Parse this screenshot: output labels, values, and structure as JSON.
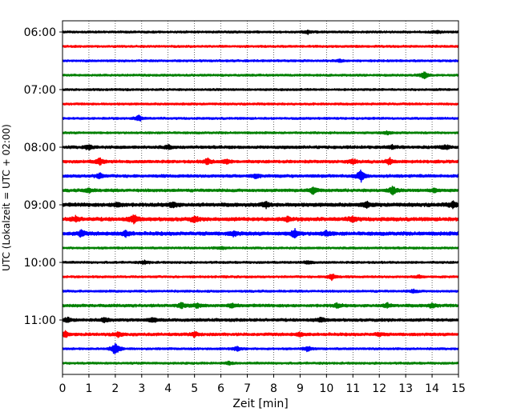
{
  "chart_data": {
    "type": "line",
    "title": "",
    "xlabel": "Zeit  [min]",
    "ylabel": "UTC (Lokalzeit = UTC + 02:00)",
    "xlim": [
      0,
      15
    ],
    "x_ticks": [
      "0",
      "1",
      "2",
      "3",
      "4",
      "5",
      "6",
      "7",
      "8",
      "9",
      "10",
      "11",
      "12",
      "13",
      "14",
      "15"
    ],
    "y_ticks": [
      "06:00",
      "07:00",
      "08:00",
      "09:00",
      "10:00",
      "11:00"
    ],
    "grid": "vertical dotted",
    "trace_colors": [
      "#000000",
      "#ff0000",
      "#0000ff",
      "#008000"
    ],
    "traces": [
      {
        "time": "06:00",
        "color": "#000000",
        "amplitude": 3,
        "events": [
          {
            "x": 9.3,
            "amp": 4
          },
          {
            "x": 14.2,
            "amp": 3
          }
        ]
      },
      {
        "time": "06:15",
        "color": "#ff0000",
        "amplitude": 3,
        "events": []
      },
      {
        "time": "06:30",
        "color": "#0000ff",
        "amplitude": 3,
        "events": [
          {
            "x": 10.5,
            "amp": 3
          }
        ]
      },
      {
        "time": "06:45",
        "color": "#008000",
        "amplitude": 3,
        "events": [
          {
            "x": 13.7,
            "amp": 9
          }
        ]
      },
      {
        "time": "07:00",
        "color": "#000000",
        "amplitude": 3,
        "events": []
      },
      {
        "time": "07:15",
        "color": "#ff0000",
        "amplitude": 3,
        "events": []
      },
      {
        "time": "07:30",
        "color": "#0000ff",
        "amplitude": 3,
        "events": [
          {
            "x": 2.9,
            "amp": 7
          }
        ]
      },
      {
        "time": "07:45",
        "color": "#008000",
        "amplitude": 3,
        "events": [
          {
            "x": 12.3,
            "amp": 4
          }
        ]
      },
      {
        "time": "08:00",
        "color": "#000000",
        "amplitude": 4,
        "events": [
          {
            "x": 1.0,
            "amp": 6
          },
          {
            "x": 4.0,
            "amp": 4
          },
          {
            "x": 12.5,
            "amp": 4
          },
          {
            "x": 14.5,
            "amp": 5
          }
        ]
      },
      {
        "time": "08:15",
        "color": "#ff0000",
        "amplitude": 4,
        "events": [
          {
            "x": 1.4,
            "amp": 8
          },
          {
            "x": 5.5,
            "amp": 7
          },
          {
            "x": 6.2,
            "amp": 5
          },
          {
            "x": 11.0,
            "amp": 6
          },
          {
            "x": 12.4,
            "amp": 7
          }
        ]
      },
      {
        "time": "08:30",
        "color": "#0000ff",
        "amplitude": 4,
        "events": [
          {
            "x": 1.4,
            "amp": 6
          },
          {
            "x": 7.3,
            "amp": 5
          },
          {
            "x": 11.3,
            "amp": 14
          }
        ]
      },
      {
        "time": "08:45",
        "color": "#008000",
        "amplitude": 4,
        "events": [
          {
            "x": 1.0,
            "amp": 5
          },
          {
            "x": 9.5,
            "amp": 9
          },
          {
            "x": 12.5,
            "amp": 10
          },
          {
            "x": 14.1,
            "amp": 5
          }
        ]
      },
      {
        "time": "09:00",
        "color": "#000000",
        "amplitude": 5,
        "events": [
          {
            "x": 2.1,
            "amp": 6
          },
          {
            "x": 4.2,
            "amp": 7
          },
          {
            "x": 7.7,
            "amp": 6
          },
          {
            "x": 11.5,
            "amp": 6
          },
          {
            "x": 14.8,
            "amp": 7
          }
        ]
      },
      {
        "time": "09:15",
        "color": "#ff0000",
        "amplitude": 5,
        "events": [
          {
            "x": 0.5,
            "amp": 6
          },
          {
            "x": 2.7,
            "amp": 10
          },
          {
            "x": 5.0,
            "amp": 6
          },
          {
            "x": 8.5,
            "amp": 5
          },
          {
            "x": 11.0,
            "amp": 6
          }
        ]
      },
      {
        "time": "09:30",
        "color": "#0000ff",
        "amplitude": 5,
        "events": [
          {
            "x": 0.7,
            "amp": 7
          },
          {
            "x": 2.4,
            "amp": 6
          },
          {
            "x": 6.5,
            "amp": 5
          },
          {
            "x": 8.8,
            "amp": 10
          },
          {
            "x": 10.0,
            "amp": 6
          }
        ]
      },
      {
        "time": "09:45",
        "color": "#008000",
        "amplitude": 3,
        "events": [
          {
            "x": 6.0,
            "amp": 3
          }
        ]
      },
      {
        "time": "10:00",
        "color": "#000000",
        "amplitude": 3,
        "events": [
          {
            "x": 3.1,
            "amp": 4
          },
          {
            "x": 9.3,
            "amp": 4
          }
        ]
      },
      {
        "time": "10:15",
        "color": "#ff0000",
        "amplitude": 3,
        "events": [
          {
            "x": 10.2,
            "amp": 8
          },
          {
            "x": 13.5,
            "amp": 3
          }
        ]
      },
      {
        "time": "10:30",
        "color": "#0000ff",
        "amplitude": 3,
        "events": [
          {
            "x": 13.3,
            "amp": 4
          }
        ]
      },
      {
        "time": "10:45",
        "color": "#008000",
        "amplitude": 4,
        "events": [
          {
            "x": 4.5,
            "amp": 6
          },
          {
            "x": 5.1,
            "amp": 5
          },
          {
            "x": 6.4,
            "amp": 5
          },
          {
            "x": 10.4,
            "amp": 5
          },
          {
            "x": 12.3,
            "amp": 5
          },
          {
            "x": 14.0,
            "amp": 5
          }
        ]
      },
      {
        "time": "11:00",
        "color": "#000000",
        "amplitude": 4,
        "events": [
          {
            "x": 0.2,
            "amp": 6
          },
          {
            "x": 1.6,
            "amp": 5
          },
          {
            "x": 3.4,
            "amp": 5
          },
          {
            "x": 9.8,
            "amp": 5
          }
        ]
      },
      {
        "time": "11:15",
        "color": "#ff0000",
        "amplitude": 4,
        "events": [
          {
            "x": 0.1,
            "amp": 7
          },
          {
            "x": 2.1,
            "amp": 6
          },
          {
            "x": 5.0,
            "amp": 5
          },
          {
            "x": 9.0,
            "amp": 4
          },
          {
            "x": 12.0,
            "amp": 4
          }
        ]
      },
      {
        "time": "11:30",
        "color": "#0000ff",
        "amplitude": 3,
        "events": [
          {
            "x": 2.0,
            "amp": 16
          },
          {
            "x": 6.6,
            "amp": 5
          },
          {
            "x": 9.3,
            "amp": 6
          }
        ]
      },
      {
        "time": "11:45",
        "color": "#008000",
        "amplitude": 3,
        "events": [
          {
            "x": 6.3,
            "amp": 4
          }
        ]
      }
    ]
  }
}
